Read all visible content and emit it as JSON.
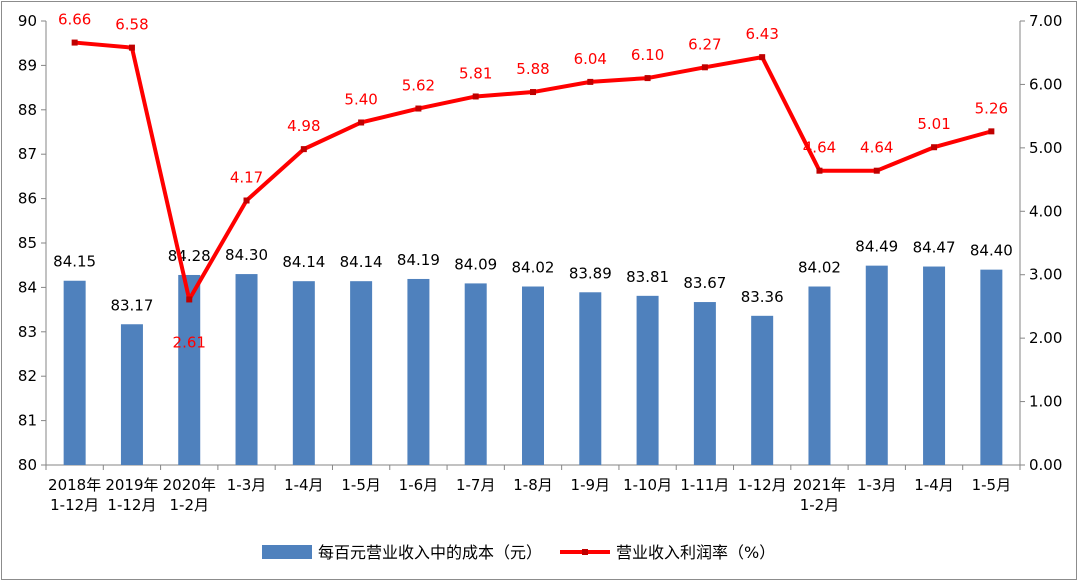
{
  "chart_data": {
    "type": "bar+line",
    "categories": [
      [
        "2018年",
        "1-12月"
      ],
      [
        "2019年",
        "1-12月"
      ],
      [
        "2020年",
        "1-2月"
      ],
      [
        "1-3月"
      ],
      [
        "1-4月"
      ],
      [
        "1-5月"
      ],
      [
        "1-6月"
      ],
      [
        "1-7月"
      ],
      [
        "1-8月"
      ],
      [
        "1-9月"
      ],
      [
        "1-10月"
      ],
      [
        "1-11月"
      ],
      [
        "1-12月"
      ],
      [
        "2021年",
        "1-2月"
      ],
      [
        "1-3月"
      ],
      [
        "1-4月"
      ],
      [
        "1-5月"
      ]
    ],
    "series": [
      {
        "name": "每百元营业收入中的成本（元）",
        "type": "bar",
        "axis": "left",
        "color": "#4f81bd",
        "values": [
          84.15,
          83.17,
          84.28,
          84.3,
          84.14,
          84.14,
          84.19,
          84.09,
          84.02,
          83.89,
          83.81,
          83.67,
          83.36,
          84.02,
          84.49,
          84.47,
          84.4
        ],
        "labels": [
          "84.15",
          "83.17",
          "84.28",
          "84.30",
          "84.14",
          "84.14",
          "84.19",
          "84.09",
          "84.02",
          "83.89",
          "83.81",
          "83.67",
          "83.36",
          "84.02",
          "84.49",
          "84.47",
          "84.40"
        ]
      },
      {
        "name": "营业收入利润率（%）",
        "type": "line",
        "axis": "right",
        "color": "#ff0000",
        "values": [
          6.66,
          6.58,
          2.61,
          4.17,
          4.98,
          5.4,
          5.62,
          5.81,
          5.88,
          6.04,
          6.1,
          6.27,
          6.43,
          4.64,
          4.64,
          5.01,
          5.26
        ],
        "labels": [
          "6.66",
          "6.58",
          "2.61",
          "4.17",
          "4.98",
          "5.40",
          "5.62",
          "5.81",
          "5.88",
          "6.04",
          "6.10",
          "6.27",
          "6.43",
          "4.64",
          "4.64",
          "5.01",
          "5.26"
        ]
      }
    ],
    "y_left": {
      "ylim": [
        80,
        90
      ],
      "ticks": [
        "80",
        "81",
        "82",
        "83",
        "84",
        "85",
        "86",
        "87",
        "88",
        "89",
        "90"
      ]
    },
    "y_right": {
      "ylim": [
        0,
        7
      ],
      "ticks": [
        "0.00",
        "1.00",
        "2.00",
        "3.00",
        "4.00",
        "5.00",
        "6.00",
        "7.00"
      ]
    },
    "grid": false,
    "legend_position": "bottom"
  }
}
